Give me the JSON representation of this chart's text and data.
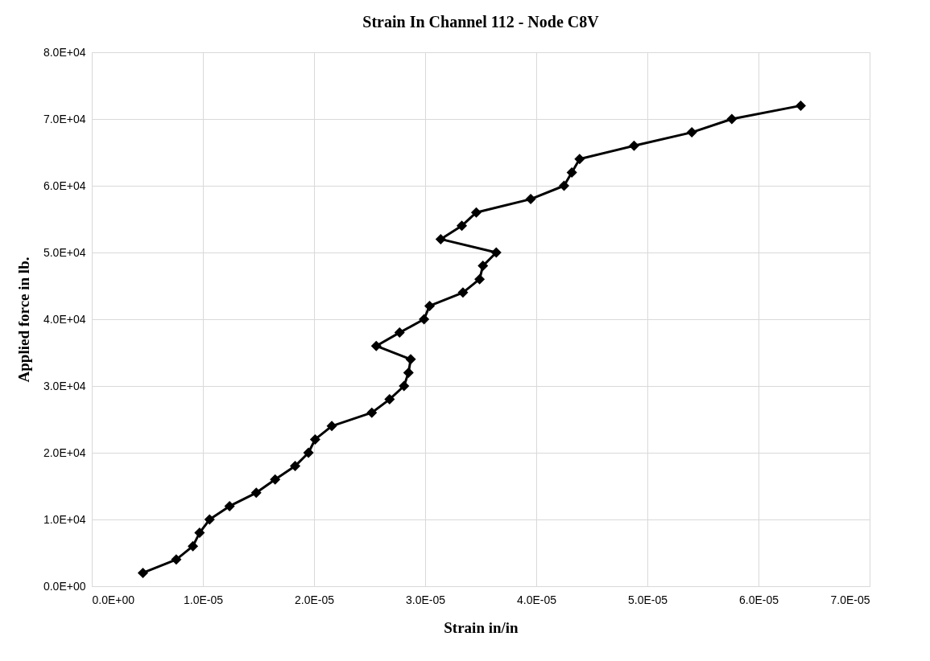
{
  "chart_data": {
    "type": "line",
    "title": "Strain In Channel 112 - Node C8V",
    "xlabel": "Strain in/in",
    "ylabel": "Applied force in lb.",
    "x": [
      4.6e-06,
      7.6e-06,
      9.1e-06,
      9.7e-06,
      1.06e-05,
      1.24e-05,
      1.48e-05,
      1.65e-05,
      1.83e-05,
      1.95e-05,
      2.01e-05,
      2.16e-05,
      2.52e-05,
      2.68e-05,
      2.81e-05,
      2.85e-05,
      2.87e-05,
      2.56e-05,
      2.77e-05,
      2.99e-05,
      3.04e-05,
      3.34e-05,
      3.49e-05,
      3.52e-05,
      3.64e-05,
      3.14e-05,
      3.33e-05,
      3.46e-05,
      3.95e-05,
      4.25e-05,
      4.32e-05,
      4.39e-05,
      4.88e-05,
      5.4e-05,
      5.76e-05,
      6.38e-05
    ],
    "series": [
      {
        "color": "#000000",
        "values": [
          2000,
          4000,
          6000,
          8000,
          10000,
          12000,
          14000,
          16000,
          18000,
          20000,
          22000,
          24000,
          26000,
          28000,
          30000,
          32000,
          34000,
          36000,
          38000,
          40000,
          42000,
          44000,
          46000,
          48000,
          50000,
          52000,
          54000,
          56000,
          58000,
          60000,
          62000,
          64000,
          66000,
          68000,
          70000,
          72000
        ]
      }
    ],
    "xlim": [
      0,
      7e-05
    ],
    "xticks": [
      {
        "value": 0,
        "label": "0.0E+00"
      },
      {
        "value": 1e-05,
        "label": "1.0E-05"
      },
      {
        "value": 2e-05,
        "label": "2.0E-05"
      },
      {
        "value": 3e-05,
        "label": "3.0E-05"
      },
      {
        "value": 4e-05,
        "label": "4.0E-05"
      },
      {
        "value": 5e-05,
        "label": "5.0E-05"
      },
      {
        "value": 6e-05,
        "label": "6.0E-05"
      },
      {
        "value": 7e-05,
        "label": "7.0E-05"
      }
    ],
    "ylim": [
      0,
      80000
    ],
    "yticks": [
      {
        "value": 0,
        "label": "0.0E+00"
      },
      {
        "value": 10000,
        "label": "1.0E+04"
      },
      {
        "value": 20000,
        "label": "2.0E+04"
      },
      {
        "value": 30000,
        "label": "3.0E+04"
      },
      {
        "value": 40000,
        "label": "4.0E+04"
      },
      {
        "value": 50000,
        "label": "5.0E+04"
      },
      {
        "value": 60000,
        "label": "6.0E+04"
      },
      {
        "value": 70000,
        "label": "7.0E+04"
      },
      {
        "value": 80000,
        "label": "8.0E+04"
      }
    ],
    "grid": true,
    "marker": "diamond",
    "line_style": "solid",
    "legend": false
  }
}
